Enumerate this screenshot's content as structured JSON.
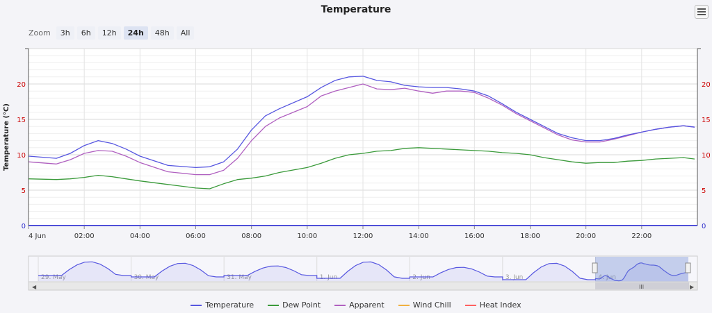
{
  "title": "Temperature",
  "zoom": {
    "label": "Zoom",
    "buttons": [
      "3h",
      "6h",
      "12h",
      "24h",
      "48h",
      "All"
    ],
    "active": "24h"
  },
  "colors": {
    "temperature": "#5656e0",
    "dew_point": "#3a9a3a",
    "apparent": "#b060c0",
    "wind_chill": "#f0b040",
    "heat_index": "#ff6060",
    "axis_labels": "#cc0000"
  },
  "legend": [
    "Temperature",
    "Dew Point",
    "Apparent",
    "Wind Chill",
    "Heat Index"
  ],
  "navigator_labels": [
    "29. May",
    "30. May",
    "31. May",
    "1. Jun",
    "2. Jun",
    "3. Jun",
    "4. Jun"
  ],
  "chart_data": {
    "type": "line",
    "title": "Temperature",
    "ylabel": "Temperature (°C)",
    "ylim": [
      0,
      25
    ],
    "x_tick_labels": [
      "4 Jun",
      "02:00",
      "04:00",
      "06:00",
      "08:00",
      "10:00",
      "12:00",
      "14:00",
      "16:00",
      "18:00",
      "20:00",
      "22:00"
    ],
    "y_ticks": [
      0,
      5,
      10,
      15,
      20
    ],
    "grid": true,
    "legend_position": "bottom",
    "x_hours": [
      0,
      1,
      1.5,
      2,
      2.5,
      3,
      3.5,
      4,
      5,
      6,
      6.5,
      7,
      7.5,
      8,
      8.5,
      9,
      10,
      10.5,
      11,
      11.5,
      12,
      12.5,
      13,
      13.5,
      14,
      14.5,
      15,
      15.5,
      16,
      16.5,
      17,
      17.5,
      18,
      18.5,
      19,
      19.5,
      20,
      20.5,
      21,
      21.5,
      22,
      22.5,
      23,
      23.5,
      23.9
    ],
    "series": [
      {
        "name": "Temperature",
        "values": [
          9.8,
          9.5,
          10.2,
          11.3,
          12.0,
          11.6,
          10.8,
          9.8,
          8.5,
          8.2,
          8.3,
          9.0,
          10.8,
          13.5,
          15.5,
          16.5,
          18.2,
          19.5,
          20.5,
          21.0,
          21.1,
          20.5,
          20.3,
          19.8,
          19.6,
          19.5,
          19.5,
          19.3,
          19.0,
          18.3,
          17.2,
          16.0,
          15.0,
          14.0,
          13.0,
          12.4,
          12.0,
          12.0,
          12.3,
          12.8,
          13.2,
          13.6,
          13.9,
          14.1,
          13.9
        ]
      },
      {
        "name": "Dew Point",
        "values": [
          6.6,
          6.5,
          6.6,
          6.8,
          7.1,
          6.9,
          6.6,
          6.3,
          5.8,
          5.3,
          5.2,
          5.9,
          6.5,
          6.7,
          7.0,
          7.5,
          8.2,
          8.8,
          9.5,
          10.0,
          10.2,
          10.5,
          10.6,
          10.9,
          11.0,
          10.9,
          10.8,
          10.7,
          10.6,
          10.5,
          10.3,
          10.2,
          10.0,
          9.6,
          9.3,
          9.0,
          8.8,
          8.9,
          8.9,
          9.1,
          9.2,
          9.4,
          9.5,
          9.6,
          9.4
        ]
      },
      {
        "name": "Apparent",
        "values": [
          9.0,
          8.7,
          9.3,
          10.2,
          10.6,
          10.5,
          9.8,
          8.9,
          7.6,
          7.2,
          7.2,
          7.8,
          9.5,
          12.0,
          14.0,
          15.2,
          16.8,
          18.3,
          19.0,
          19.5,
          20.0,
          19.3,
          19.2,
          19.4,
          19.0,
          18.7,
          19.0,
          19.0,
          18.8,
          18.0,
          17.0,
          15.8,
          14.8,
          13.8,
          12.8,
          12.1,
          11.8,
          11.8,
          12.2,
          12.7,
          13.2,
          13.6,
          13.9,
          14.1,
          13.9
        ]
      },
      {
        "name": "Wind Chill",
        "values": []
      },
      {
        "name": "Heat Index",
        "values": []
      }
    ]
  }
}
